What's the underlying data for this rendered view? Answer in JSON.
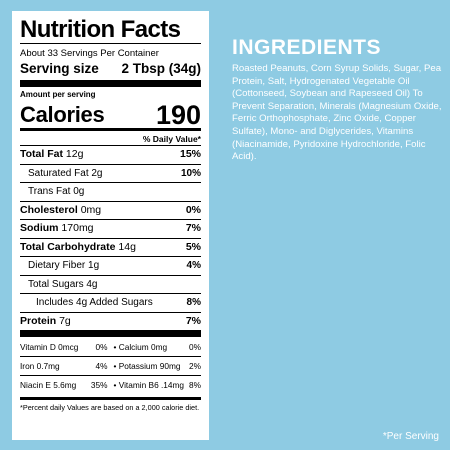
{
  "nutrition": {
    "title": "Nutrition Facts",
    "servings_per_container": "About 33 Servings Per Container",
    "serving_size_label": "Serving size",
    "serving_size_value": "2 Tbsp (34g)",
    "amount_per_serving": "Amount per serving",
    "calories_label": "Calories",
    "calories_value": "190",
    "daily_value_header": "% Daily Value*",
    "rows": [
      {
        "label": "Total Fat",
        "amount": "12g",
        "dv": "15%"
      },
      {
        "label": "Saturated Fat",
        "amount": "2g",
        "dv": "10%"
      },
      {
        "label": "Trans Fat",
        "amount": "0g",
        "dv": ""
      },
      {
        "label": "Cholesterol",
        "amount": "0mg",
        "dv": "0%"
      },
      {
        "label": "Sodium",
        "amount": "170mg",
        "dv": "7%"
      },
      {
        "label": "Total Carbohydrate",
        "amount": "14g",
        "dv": "5%"
      },
      {
        "label": "Dietary Fiber",
        "amount": "1g",
        "dv": "4%"
      },
      {
        "label": "Total Sugars",
        "amount": "4g",
        "dv": ""
      },
      {
        "label": "Includes 4g Added Sugars",
        "amount": "",
        "dv": "8%"
      },
      {
        "label": "Protein",
        "amount": "7g",
        "dv": "7%"
      }
    ],
    "micronutrients": [
      {
        "left_label": "Vitamin D 0mcg",
        "left_dv": "0%",
        "right_label": "• Calcium 0mg",
        "right_dv": "0%"
      },
      {
        "left_label": "Iron 0.7mg",
        "left_dv": "4%",
        "right_label": "• Potassium 90mg",
        "right_dv": "2%"
      },
      {
        "left_label": "Niacin E 5.6mg",
        "left_dv": "35%",
        "right_label": "• Vitamin B6 .14mg",
        "right_dv": "8%"
      }
    ],
    "footnote": "*Percent daily Values are based on a 2,000 calorie diet."
  },
  "ingredients": {
    "title": "INGREDIENTS",
    "text": "Roasted Peanuts, Corn Syrup Solids, Sugar, Pea Protein, Salt, Hydrogenated Vegetable Oil (Cottonseed, Soybean and Rapeseed Oil) To Prevent Separation, Minerals (Magnesium Oxide, Ferric Orthophosphate, Zinc Oxide, Copper Sulfate), Mono- and Diglycerides, Vitamins (Niacinamide, Pyridoxine Hydrochloride, Folic Acid)."
  },
  "per_serving_note": "*Per Serving",
  "colors": {
    "background": "#8ecbe3",
    "panel": "#ffffff",
    "text_dark": "#000000",
    "text_light": "#ffffff"
  }
}
